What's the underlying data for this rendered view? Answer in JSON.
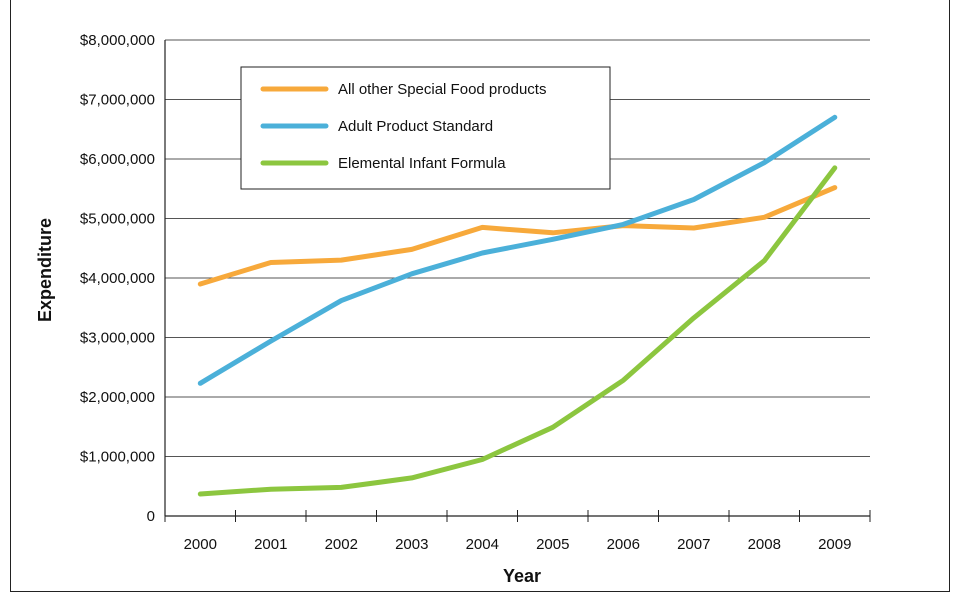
{
  "chart_data": {
    "type": "line",
    "title": "",
    "xlabel": "Year",
    "ylabel": "Expenditure",
    "categories": [
      "2000",
      "2001",
      "2002",
      "2003",
      "2004",
      "2005",
      "2006",
      "2007",
      "2008",
      "2009"
    ],
    "ylim": [
      0,
      8000000
    ],
    "y_ticks": [
      0,
      1000000,
      2000000,
      3000000,
      4000000,
      5000000,
      6000000,
      7000000,
      8000000
    ],
    "y_tick_labels": [
      "0",
      "$1,000,000",
      "$2,000,000",
      "$3,000,000",
      "$4,000,000",
      "$5,000,000",
      "$6,000,000",
      "$7,000,000",
      "$8,000,000"
    ],
    "grid": true,
    "legend_position": "top-left",
    "series": [
      {
        "name": "All other Special Food products",
        "color": "#f7a93b",
        "values": [
          3900000,
          4260000,
          4300000,
          4480000,
          4850000,
          4760000,
          4880000,
          4840000,
          5020000,
          5520000
        ]
      },
      {
        "name": "Adult Product Standard",
        "color": "#4bb0d9",
        "values": [
          2230000,
          2940000,
          3620000,
          4070000,
          4420000,
          4650000,
          4900000,
          5320000,
          5940000,
          6700000
        ]
      },
      {
        "name": "Elemental Infant Formula",
        "color": "#8cc63f",
        "values": [
          370000,
          450000,
          480000,
          640000,
          950000,
          1490000,
          2280000,
          3330000,
          4290000,
          5850000
        ]
      }
    ]
  }
}
